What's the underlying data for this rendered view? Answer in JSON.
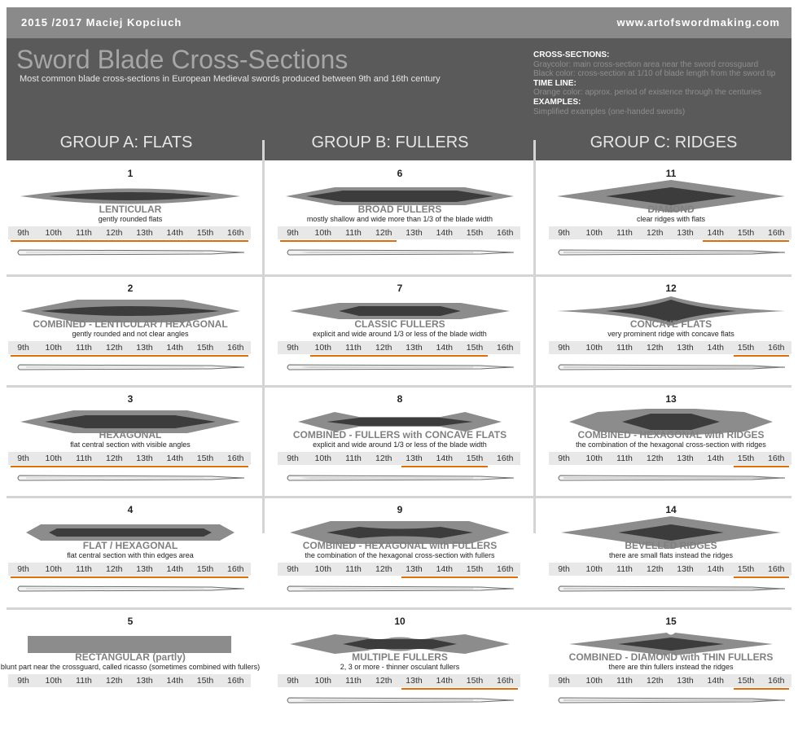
{
  "header": {
    "author": "2015 /2017 Maciej Kopciuch",
    "website": "www.artofswordmaking.com",
    "title": "Sword Blade Cross-Sections",
    "subtitle": "Most common blade cross-sections in European Medieval swords produced between 9th and 16th century"
  },
  "legend": {
    "cross_heading": "CROSS-SECTIONS:",
    "cross_gray": "Graycolor: main cross-section area near the sword crossguard",
    "cross_black": "Black color: cross-section at 1/10 of blade length from the sword tip",
    "time_heading": "TIME LINE:",
    "time_text": "Orange color: approx. period of existence through the centuries",
    "examples_heading": "EXAMPLES:",
    "examples_text": "Simplified examples (one-handed swords)"
  },
  "groups": [
    "GROUP A: FLATS",
    "GROUP B: FULLERS",
    "GROUP C: RIDGES"
  ],
  "centuries": [
    "9th",
    "10th",
    "11th",
    "12th",
    "13th",
    "14th",
    "15th",
    "16th"
  ],
  "colors": {
    "orange": "#e36c0a",
    "gray": "#8c8c8c",
    "dark": "#3c3c3c"
  },
  "sections": [
    {
      "num": "1",
      "name": "LENTICULAR",
      "desc": "gently rounded flats",
      "range": [
        9,
        16
      ]
    },
    {
      "num": "2",
      "name": "COMBINED - LENTICULAR / HEXAGONAL",
      "desc": "gently rounded and not clear angles",
      "range": [
        9,
        16
      ]
    },
    {
      "num": "3",
      "name": "HEXAGONAL",
      "desc": "flat central section with visible angles",
      "range": [
        9,
        16
      ]
    },
    {
      "num": "4",
      "name": "FLAT / HEXAGONAL",
      "desc": "flat central section with thin edges area",
      "range": [
        9,
        16
      ]
    },
    {
      "num": "5",
      "name": "RECTANGULAR (partly)",
      "desc": "blunt part near the crossguard, called ricasso (sometimes combined with fullers)",
      "range": null
    },
    {
      "num": "6",
      "name": "BROAD FULLERS",
      "desc": "mostly shallow and wide more than 1/3 of the blade width",
      "range": [
        9,
        12
      ]
    },
    {
      "num": "7",
      "name": "CLASSIC FULLERS",
      "desc": "explicit and wide around 1/3 or less of the blade width",
      "range": [
        10,
        15
      ]
    },
    {
      "num": "8",
      "name": "COMBINED - FULLERS with CONCAVE FLATS",
      "desc": "explicit and wide around 1/3 or less of the blade width",
      "range": [
        13,
        15
      ]
    },
    {
      "num": "9",
      "name": "COMBINED - HEXAGONAL with FULLERS",
      "desc": "the combination of the hexagonal cross-section with fullers",
      "range": [
        13,
        16
      ]
    },
    {
      "num": "10",
      "name": "MULTIPLE FULLERS",
      "desc": "2, 3 or more - thinner osculant fullers",
      "range": [
        13,
        16
      ]
    },
    {
      "num": "11",
      "name": "DIAMOND",
      "desc": "clear ridges with flats",
      "range": [
        14,
        16
      ]
    },
    {
      "num": "12",
      "name": "CONCAVE FLATS",
      "desc": "very prominent ridge with concave flats",
      "range": [
        15,
        16
      ]
    },
    {
      "num": "13",
      "name": "COMBINED - HEXAGONAL with RIDGES",
      "desc": "the combination of the hexagonal cross-section with ridges",
      "range": [
        15,
        16
      ]
    },
    {
      "num": "14",
      "name": "BEVELLED RIDGES",
      "desc": "there are small flats instead the ridges",
      "range": [
        15,
        16
      ]
    },
    {
      "num": "15",
      "name": "COMBINED - DIAMOND with THIN FULLERS",
      "desc": "there are thin fullers instead the ridges",
      "range": [
        15,
        16
      ]
    }
  ]
}
